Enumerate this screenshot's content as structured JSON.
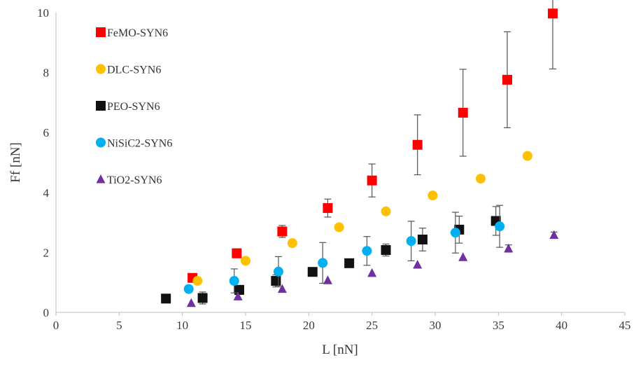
{
  "chart_data": {
    "type": "scatter",
    "xlabel": "L [nN]",
    "ylabel": "Ff [nN]",
    "xlim": [
      0,
      45
    ],
    "ylim": [
      0,
      10
    ],
    "xticks": [
      0,
      5,
      10,
      15,
      20,
      25,
      30,
      35,
      40,
      45
    ],
    "yticks": [
      0,
      2,
      4,
      6,
      8,
      10
    ],
    "grid": false,
    "legend_position": "top-left",
    "series": [
      {
        "name": "FeMO-SYN6",
        "marker": "square",
        "color": "#ff0000",
        "x": [
          10.8,
          14.3,
          17.9,
          21.5,
          25.0,
          28.6,
          32.2,
          35.7,
          39.3
        ],
        "y": [
          1.15,
          1.97,
          2.7,
          3.48,
          4.4,
          5.59,
          6.66,
          7.76,
          9.97
        ],
        "err": [
          0.1,
          0.15,
          0.2,
          0.3,
          0.55,
          1.0,
          1.45,
          1.6,
          1.85
        ]
      },
      {
        "name": "DLC-SYN6",
        "marker": "circle",
        "color": "#ffc000",
        "x": [
          11.2,
          15.0,
          18.7,
          22.4,
          26.1,
          29.8,
          33.6,
          37.3
        ],
        "y": [
          1.05,
          1.72,
          2.31,
          2.84,
          3.37,
          3.9,
          4.46,
          5.22
        ],
        "err": [
          0,
          0,
          0,
          0,
          0,
          0,
          0,
          0
        ]
      },
      {
        "name": "PEO-SYN6",
        "marker": "square",
        "color": "#111111",
        "x": [
          8.7,
          11.6,
          14.5,
          17.4,
          20.3,
          23.2,
          26.1,
          29.0,
          31.9,
          34.8
        ],
        "y": [
          0.46,
          0.48,
          0.75,
          1.05,
          1.35,
          1.64,
          2.08,
          2.43,
          2.76,
          3.05
        ],
        "err": [
          0,
          0.2,
          0.15,
          0.2,
          0,
          0,
          0.2,
          0.38,
          0.45,
          0.48
        ]
      },
      {
        "name": "NiSiC2-SYN6",
        "marker": "circle",
        "color": "#00b0f0",
        "x": [
          10.5,
          14.1,
          17.6,
          21.1,
          24.6,
          28.1,
          31.6,
          35.1
        ],
        "y": [
          0.78,
          1.05,
          1.36,
          1.65,
          2.05,
          2.38,
          2.66,
          2.87
        ],
        "err": [
          0,
          0.4,
          0.5,
          0.68,
          0.48,
          0.66,
          0.68,
          0.7
        ]
      },
      {
        "name": "TiO2-SYN6",
        "marker": "triangle",
        "color": "#7030a0",
        "x": [
          10.7,
          14.4,
          17.9,
          21.5,
          25.0,
          28.6,
          32.2,
          35.8,
          39.4
        ],
        "y": [
          0.31,
          0.53,
          0.78,
          1.07,
          1.31,
          1.59,
          1.84,
          2.13,
          2.58
        ],
        "err": [
          0,
          0,
          0,
          0,
          0,
          0,
          0,
          0.12,
          0.1
        ]
      }
    ]
  }
}
